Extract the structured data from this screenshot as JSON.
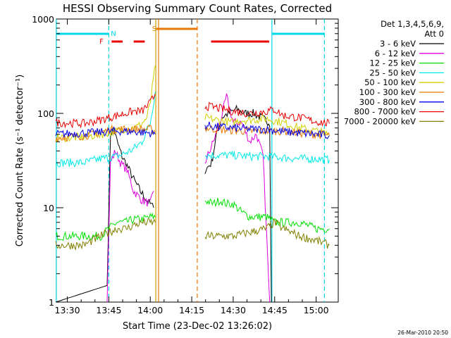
{
  "chart_data": {
    "type": "line",
    "title": "HESSI Observing Summary Count Rates, Corrected",
    "xlabel": "Start Time (23-Dec-02 13:26:02)",
    "ylabel": "Corrected Count Rate (s⁻¹ detector⁻¹)",
    "timestamp": "26-Mar-2010 20:50",
    "yscale": "log",
    "ylim": [
      1,
      1000
    ],
    "xlim_minutes": [
      13.4,
      13.6,
      15.1
    ],
    "xlim": [
      "13:26:02",
      "15:08:00"
    ],
    "x_ticks": [
      "13:30",
      "13:45",
      "14:00",
      "14:15",
      "14:30",
      "14:45",
      "15:00"
    ],
    "y_ticks": [
      "1",
      "10",
      "100",
      "1000"
    ],
    "legend": {
      "placement": "right",
      "header": [
        "Det 1,3,4,5,6,9,",
        "Att 0"
      ]
    },
    "flags": [
      {
        "label": "N",
        "color": "#00d8e8",
        "segments": [
          [
            "13:26",
            "13:45"
          ],
          [
            "14:44",
            "15:03"
          ]
        ]
      },
      {
        "label": "F",
        "color": "#e80000",
        "segments": [
          [
            "13:46",
            "13:50"
          ],
          [
            "13:54",
            "13:58"
          ],
          [
            "14:22",
            "14:43"
          ]
        ]
      },
      {
        "label": "S",
        "color": "#e87800",
        "segments": [
          [
            "14:02",
            "14:17"
          ]
        ]
      }
    ],
    "markers": [
      {
        "time": "13:45",
        "color": "#00d8e8",
        "style": "dashed"
      },
      {
        "time": "14:44",
        "color": "#00d8e8",
        "style": "solid"
      },
      {
        "time": "15:03",
        "color": "#00d8e8",
        "style": "dashed"
      },
      {
        "time": "13:26",
        "color": "#00d8e8",
        "style": "solid"
      },
      {
        "time": "14:02",
        "color": "#d0a000",
        "style": "solid"
      },
      {
        "time": "14:03",
        "color": "#e87800",
        "style": "solid"
      },
      {
        "time": "14:17",
        "color": "#e87800",
        "style": "dashed"
      }
    ],
    "x_minutes": [
      [
        0,
        1,
        3,
        5,
        7,
        9,
        11,
        13,
        15,
        17,
        19,
        21,
        23,
        25,
        27,
        29,
        31,
        33,
        35,
        37
      ],
      [
        56,
        59,
        62,
        65,
        68,
        71,
        74,
        77,
        80,
        83,
        86,
        89,
        92,
        95,
        98
      ]
    ],
    "series": [
      {
        "name": "3 - 6 keV",
        "color": "#000000",
        "segments": [
          [
            [
              13.43,
              1
            ],
            [
              13.74,
              1.5
            ],
            [
              13.76,
              60
            ],
            [
              13.78,
              70
            ],
            [
              13.8,
              50
            ],
            [
              13.83,
              35
            ],
            [
              13.86,
              28
            ],
            [
              13.9,
              20
            ],
            [
              13.94,
              15
            ],
            [
              13.98,
              12
            ],
            [
              14.02,
              10
            ]
          ],
          [
            [
              14.33,
              25
            ],
            [
              14.37,
              30
            ],
            [
              14.4,
              60
            ],
            [
              14.43,
              90
            ],
            [
              14.47,
              100
            ],
            [
              14.52,
              110
            ],
            [
              14.57,
              100
            ],
            [
              14.62,
              100
            ],
            [
              14.67,
              90
            ],
            [
              14.72,
              80
            ],
            [
              14.73,
              1
            ]
          ]
        ]
      },
      {
        "name": "6 - 12 keV",
        "color": "#e000e0",
        "segments": [
          [
            [
              13.74,
              1
            ],
            [
              13.76,
              30
            ],
            [
              13.79,
              40
            ],
            [
              13.82,
              30
            ],
            [
              13.86,
              25
            ],
            [
              13.9,
              15
            ],
            [
              13.95,
              12
            ],
            [
              14.0,
              11
            ],
            [
              14.02,
              15
            ]
          ],
          [
            [
              14.33,
              30
            ],
            [
              14.38,
              50
            ],
            [
              14.42,
              80
            ],
            [
              14.46,
              150
            ],
            [
              14.5,
              80
            ],
            [
              14.55,
              80
            ],
            [
              14.6,
              50
            ],
            [
              14.64,
              60
            ],
            [
              14.68,
              35
            ],
            [
              14.72,
              1
            ]
          ]
        ]
      },
      {
        "name": "12 - 25 keV",
        "color": "#00e000",
        "segments": [
          [
            [
              13.43,
              5
            ],
            [
              13.7,
              5
            ],
            [
              13.75,
              6
            ],
            [
              13.8,
              7
            ],
            [
              13.85,
              7
            ],
            [
              13.9,
              7.5
            ],
            [
              13.95,
              7.5
            ],
            [
              14.0,
              8
            ],
            [
              14.03,
              8
            ]
          ],
          [
            [
              14.33,
              12
            ],
            [
              14.38,
              11
            ],
            [
              14.42,
              12
            ],
            [
              14.46,
              11
            ],
            [
              14.5,
              11
            ],
            [
              14.55,
              9
            ],
            [
              14.6,
              8
            ],
            [
              14.65,
              8
            ],
            [
              14.7,
              8
            ],
            [
              14.75,
              7
            ],
            [
              14.8,
              7
            ],
            [
              14.85,
              7
            ],
            [
              14.9,
              7
            ],
            [
              15.0,
              6
            ],
            [
              15.08,
              6
            ]
          ]
        ]
      },
      {
        "name": "25 - 50 keV",
        "color": "#00e8e8",
        "segments": [
          [
            [
              13.43,
              30
            ],
            [
              13.6,
              30
            ],
            [
              13.7,
              33
            ],
            [
              13.8,
              35
            ],
            [
              13.85,
              38
            ],
            [
              13.9,
              42
            ],
            [
              13.95,
              50
            ],
            [
              14.0,
              80
            ],
            [
              14.03,
              170
            ]
          ],
          [
            [
              14.33,
              36
            ],
            [
              14.4,
              36
            ],
            [
              14.5,
              36
            ],
            [
              14.6,
              35
            ],
            [
              14.7,
              35
            ],
            [
              14.8,
              34
            ],
            [
              14.9,
              33
            ],
            [
              15.0,
              33
            ],
            [
              15.08,
              32
            ]
          ]
        ]
      },
      {
        "name": "50 - 100 keV",
        "color": "#d0d000",
        "segments": [
          [
            [
              13.43,
              55
            ],
            [
              13.6,
              56
            ],
            [
              13.7,
              60
            ],
            [
              13.8,
              65
            ],
            [
              13.86,
              70
            ],
            [
              13.9,
              70
            ],
            [
              13.94,
              75
            ],
            [
              13.98,
              90
            ],
            [
              14.0,
              130
            ],
            [
              14.03,
              320
            ]
          ],
          [
            [
              14.33,
              90
            ],
            [
              14.4,
              85
            ],
            [
              14.5,
              80
            ],
            [
              14.55,
              85
            ],
            [
              14.6,
              85
            ],
            [
              14.7,
              88
            ],
            [
              14.8,
              80
            ],
            [
              14.9,
              70
            ],
            [
              15.0,
              65
            ],
            [
              15.08,
              60
            ]
          ]
        ]
      },
      {
        "name": "100 - 300 keV",
        "color": "#e87800",
        "segments": [
          [
            [
              13.43,
              55
            ],
            [
              13.6,
              58
            ],
            [
              13.7,
              62
            ],
            [
              13.75,
              67
            ],
            [
              13.8,
              68
            ],
            [
              13.9,
              68
            ],
            [
              14.0,
              68
            ],
            [
              14.03,
              65
            ]
          ],
          [
            [
              14.33,
              70
            ],
            [
              14.4,
              68
            ],
            [
              14.5,
              66
            ],
            [
              14.6,
              65
            ],
            [
              14.7,
              65
            ],
            [
              14.8,
              65
            ],
            [
              14.9,
              62
            ],
            [
              15.0,
              60
            ],
            [
              15.08,
              58
            ]
          ]
        ]
      },
      {
        "name": "300 - 800 keV",
        "color": "#0000e8",
        "segments": [
          [
            [
              13.43,
              60
            ],
            [
              13.6,
              62
            ],
            [
              13.7,
              63
            ],
            [
              13.8,
              65
            ],
            [
              13.9,
              64
            ],
            [
              14.0,
              62
            ],
            [
              14.03,
              60
            ]
          ],
          [
            [
              14.33,
              75
            ],
            [
              14.4,
              72
            ],
            [
              14.5,
              70
            ],
            [
              14.6,
              68
            ],
            [
              14.7,
              68
            ],
            [
              14.8,
              64
            ],
            [
              14.9,
              62
            ],
            [
              15.0,
              60
            ],
            [
              15.08,
              58
            ]
          ]
        ]
      },
      {
        "name": "800 - 7000 keV",
        "color": "#e80000",
        "segments": [
          [
            [
              13.43,
              80
            ],
            [
              13.6,
              78
            ],
            [
              13.7,
              85
            ],
            [
              13.8,
              95
            ],
            [
              13.85,
              100
            ],
            [
              13.9,
              105
            ],
            [
              13.95,
              105
            ],
            [
              14.0,
              130
            ],
            [
              14.03,
              160
            ]
          ],
          [
            [
              14.33,
              120
            ],
            [
              14.4,
              115
            ],
            [
              14.5,
              105
            ],
            [
              14.6,
              100
            ],
            [
              14.7,
              105
            ],
            [
              14.75,
              110
            ],
            [
              14.8,
              95
            ],
            [
              14.9,
              90
            ],
            [
              15.0,
              82
            ],
            [
              15.08,
              78
            ]
          ]
        ]
      },
      {
        "name": "7000 - 20000 keV",
        "color": "#808000",
        "segments": [
          [
            [
              13.43,
              4
            ],
            [
              13.6,
              4
            ],
            [
              13.7,
              5
            ],
            [
              13.75,
              5.5
            ],
            [
              13.8,
              6
            ],
            [
              13.85,
              6
            ],
            [
              13.9,
              6.5
            ],
            [
              13.95,
              7
            ],
            [
              14.03,
              7
            ]
          ],
          [
            [
              14.33,
              5
            ],
            [
              14.4,
              5
            ],
            [
              14.5,
              5
            ],
            [
              14.6,
              5.5
            ],
            [
              14.7,
              6
            ],
            [
              14.75,
              7
            ],
            [
              14.8,
              6
            ],
            [
              14.9,
              5
            ],
            [
              15.0,
              4.5
            ],
            [
              15.08,
              4
            ]
          ]
        ]
      }
    ]
  }
}
